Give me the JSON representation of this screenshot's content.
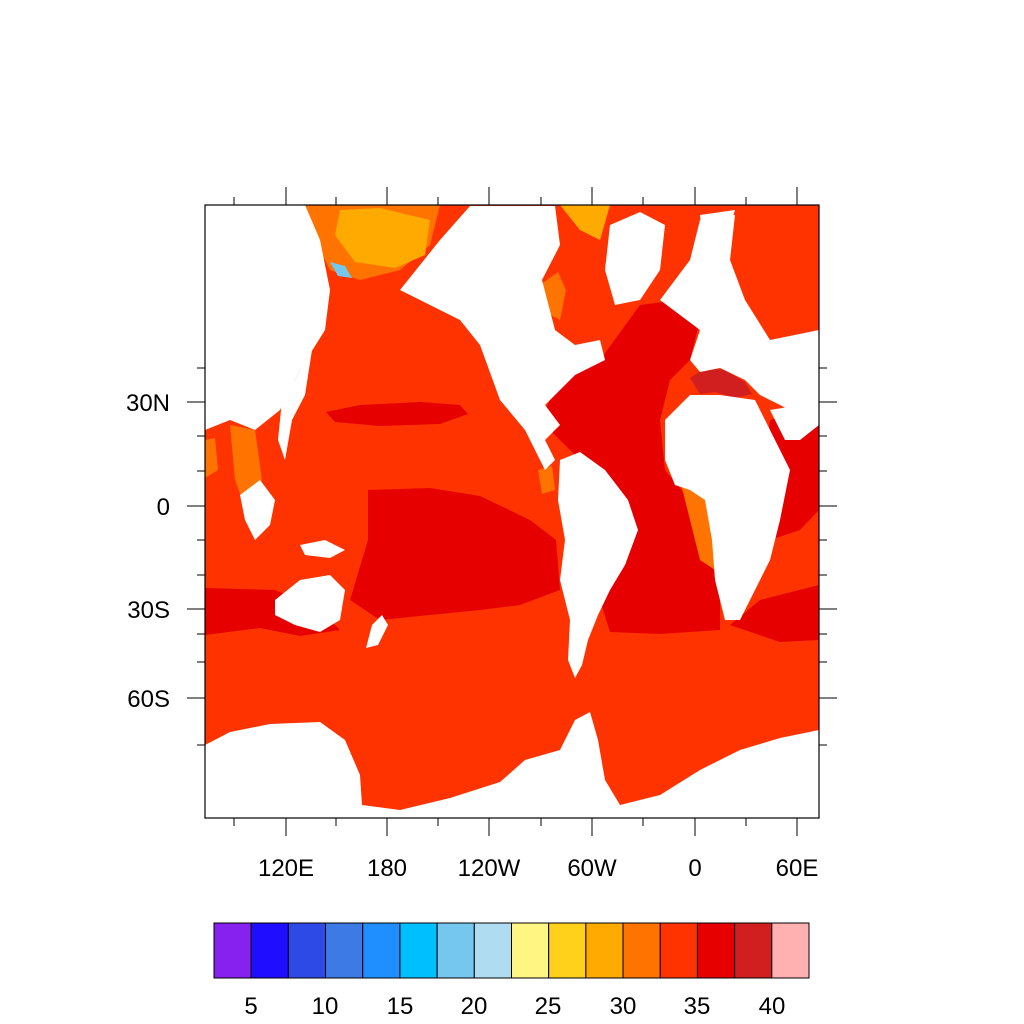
{
  "map": {
    "projection": "Mercator",
    "longitude_labels": [
      "120E",
      "180",
      "120W",
      "60W",
      "0",
      "60E"
    ],
    "latitude_labels": [
      "30N",
      "0",
      "30S",
      "60S"
    ],
    "colors": {
      "ocean_base": "#ff3300",
      "warm_band": "#e60000",
      "med_red": "#d11f1f",
      "orange": "#ff7300",
      "gold": "#ffaa00",
      "baltic_blue": "#1f1fe6",
      "light_blue": "#75c7f0",
      "land": "#ffffff",
      "frame": "#000000"
    }
  },
  "colorbar": {
    "labels": [
      "5",
      "10",
      "15",
      "20",
      "25",
      "30",
      "35",
      "40"
    ],
    "colors": [
      "#8721f0",
      "#1f0dff",
      "#2e4ae6",
      "#3d7ae6",
      "#1f8fff",
      "#00bfff",
      "#75c7f0",
      "#b0dcf2",
      "#fff582",
      "#ffd11a",
      "#ffaa00",
      "#ff7300",
      "#ff3300",
      "#e60000",
      "#d11f1f",
      "#ffb0b0"
    ]
  }
}
